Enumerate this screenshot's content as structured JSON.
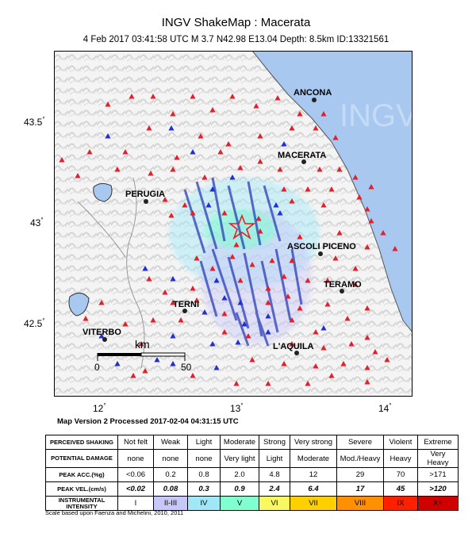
{
  "header": {
    "title": "INGV ShakeMap : Macerata",
    "subtitle": "4 Feb 2017 03:41:58 UTC   M 3.7   N42.98 E13.04   Depth: 8.5km   ID:13321561"
  },
  "map": {
    "lat_ticks": [
      "43.5",
      "43",
      "42.5"
    ],
    "lon_ticks": [
      "12",
      "13",
      "14"
    ],
    "cities": [
      {
        "name": "ANCONA"
      },
      {
        "name": "MACERATA"
      },
      {
        "name": "PERUGIA"
      },
      {
        "name": "ASCOLI PICENO"
      },
      {
        "name": "TERAMO"
      },
      {
        "name": "TERNI"
      },
      {
        "name": "VITERBO"
      },
      {
        "name": "L'AQUILA"
      }
    ],
    "scale": {
      "unit": "km",
      "min": "0",
      "max": "50"
    },
    "watermark": "INGV",
    "colors": {
      "sea": "#a8c8f0",
      "station_red": "#e0202a",
      "station_blue": "#2030d0",
      "shaking": "#2a3eb8",
      "epicenter": "#e0202a"
    }
  },
  "version_line": "Map Version 2 Processed 2017-02-04 04:31:15 UTC",
  "legend": {
    "row_headers": {
      "perceived": "PERCEIVED SHAKING",
      "damage": "POTENTIAL DAMAGE",
      "acc": "PEAK ACC.(%g)",
      "vel": "PEAK VEL.(cm/s)",
      "intensity": "INSTRUMENTAL INTENSITY"
    },
    "perceived": [
      "Not felt",
      "Weak",
      "Light",
      "Moderate",
      "Strong",
      "Very strong",
      "Severe",
      "Violent",
      "Extreme"
    ],
    "damage": [
      "none",
      "none",
      "none",
      "Very light",
      "Light",
      "Moderate",
      "Mod./Heavy",
      "Heavy",
      "Very Heavy"
    ],
    "acc": [
      "<0.06",
      "0.2",
      "0.8",
      "2.0",
      "4.8",
      "12",
      "29",
      "70",
      ">171"
    ],
    "vel": [
      "<0.02",
      "0.08",
      "0.3",
      "0.9",
      "2.4",
      "6.4",
      "17",
      "45",
      ">120"
    ],
    "intensity": [
      "I",
      "II-III",
      "IV",
      "V",
      "VI",
      "VII",
      "VIII",
      "IX",
      "X+"
    ],
    "intensity_colors": [
      "#ffffff",
      "#c8c8f8",
      "#a0e8f8",
      "#80ffd0",
      "#f8f860",
      "#ffd000",
      "#ff9000",
      "#ff2000",
      "#d00000"
    ]
  },
  "footnote": "Scale based upon Faenza and Michelini, 2010, 2011"
}
